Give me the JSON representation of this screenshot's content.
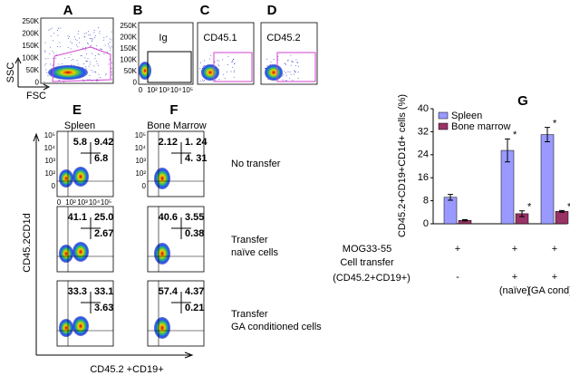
{
  "panels": {
    "A": {
      "label": "A",
      "yticks": [
        "250K",
        "200K",
        "150K",
        "100K",
        "50K",
        "0"
      ],
      "ylabel": "SSC",
      "xlabel": "FSC"
    },
    "B": {
      "label": "B",
      "yticks": [
        "250K",
        "200K",
        "150K",
        "100K",
        "50K",
        "0"
      ],
      "xticks": [
        "0",
        "10²",
        "10³",
        "10⁴",
        "10⁵"
      ],
      "text": "Ig"
    },
    "C": {
      "label": "C",
      "text": "CD45.1"
    },
    "D": {
      "label": "D",
      "text": "CD45.2"
    },
    "E": {
      "label": "E",
      "title": "Spleen",
      "yticks": [
        "10⁵",
        "10⁴",
        "10³",
        "10²",
        "0"
      ],
      "xticks": [
        "0",
        "10²",
        "10³",
        "10⁴",
        "10⁵"
      ],
      "rows": [
        [
          "5.8",
          "9.42",
          "6.8"
        ],
        [
          "41.1",
          "25.0",
          "2.67"
        ],
        [
          "33.3",
          "33.1",
          "3.63"
        ]
      ]
    },
    "F": {
      "label": "F",
      "title": "Bone Marrow",
      "yticks": [
        "10⁵",
        "10⁴",
        "10³",
        "10²",
        "0"
      ],
      "rows": [
        [
          "2.12",
          "1. 24",
          "4. 31"
        ],
        [
          "40.6",
          "3.55",
          "0.38"
        ],
        [
          "57.4",
          "4.37",
          "0.21"
        ]
      ]
    },
    "row_labels": [
      [
        "No transfer"
      ],
      [
        "Transfer",
        "naïve cells"
      ],
      [
        "Transfer",
        "GA conditioned cells"
      ]
    ],
    "ylabel": "CD45.2CD1d",
    "xlabel": "CD45.2 +CD19+"
  },
  "chart_data": {
    "type": "bar",
    "title": "G",
    "ylabel": "CD45.2+CD19+CD1d+ cells (%)",
    "categories": [
      null,
      null,
      null
    ],
    "series": [
      {
        "name": "Spleen",
        "color": "#9999ff",
        "values": [
          9.2,
          25.5,
          31
        ],
        "errors": [
          1,
          4,
          2.5
        ]
      },
      {
        "name": "Bone marrow",
        "color": "#993366",
        "values": [
          1.2,
          3.5,
          4.3
        ],
        "errors": [
          0.2,
          1,
          0.3
        ]
      }
    ],
    "ylim": [
      0,
      40
    ],
    "yticks": [
      0,
      8,
      16,
      24,
      32,
      40
    ],
    "legend": "upper left",
    "annotations": [
      [
        "",
        "*",
        "*"
      ],
      [
        "",
        "*",
        "*"
      ]
    ],
    "conditions": {
      "labels": [
        "MOG33-55",
        "Cell transfer",
        "(CD45.2+CD19+)"
      ],
      "row1": [
        "+",
        "+",
        "+"
      ],
      "row2": [
        "-",
        "+",
        "+"
      ],
      "row3": [
        "(naïve)",
        "(GA cond)"
      ]
    }
  }
}
